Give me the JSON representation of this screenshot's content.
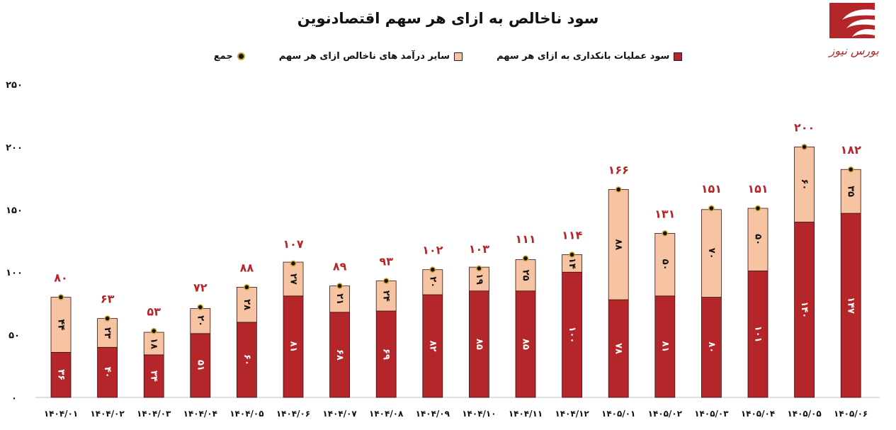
{
  "chart_data": {
    "type": "bar",
    "title": "سود ناخالص به ازای هر سهم اقتصادنوین",
    "ylim": [
      0,
      250
    ],
    "y_ticks": [
      "۰",
      "۵۰",
      "۱۰۰",
      "۱۵۰",
      "۲۰۰",
      "۲۵۰"
    ],
    "categories": [
      "۱۴۰۴/۰۱",
      "۱۴۰۴/۰۲",
      "۱۴۰۴/۰۳",
      "۱۴۰۴/۰۴",
      "۱۴۰۴/۰۵",
      "۱۴۰۴/۰۶",
      "۱۴۰۴/۰۷",
      "۱۴۰۴/۰۸",
      "۱۴۰۴/۰۹",
      "۱۴۰۴/۱۰",
      "۱۴۰۴/۱۱",
      "۱۴۰۴/۱۲",
      "۱۴۰۵/۰۱",
      "۱۴۰۵/۰۲",
      "۱۴۰۵/۰۳",
      "۱۴۰۵/۰۴",
      "۱۴۰۵/۰۵",
      "۱۴۰۵/۰۶"
    ],
    "series": [
      {
        "name": "سود عملیات بانکداری به ازای هر سهم",
        "color": "#b5262a",
        "values": [
          36,
          40,
          34,
          51,
          60,
          81,
          68,
          69,
          82,
          85,
          85,
          100,
          78,
          81,
          80,
          101,
          140,
          147
        ]
      },
      {
        "name": "سایر درآمد های ناخالص ازای هر سهم",
        "color": "#f6c4a2",
        "values": [
          44,
          23,
          18,
          20,
          28,
          27,
          21,
          24,
          20,
          19,
          25,
          14,
          88,
          50,
          70,
          50,
          60,
          35
        ]
      },
      {
        "name": "جمع",
        "values": [
          80,
          63,
          53,
          72,
          88,
          107,
          89,
          93,
          102,
          103,
          111,
          114,
          166,
          131,
          151,
          151,
          200,
          182
        ]
      }
    ],
    "legend_position": "top",
    "grid": false
  },
  "logo": {
    "text": "بورس نیوز"
  }
}
